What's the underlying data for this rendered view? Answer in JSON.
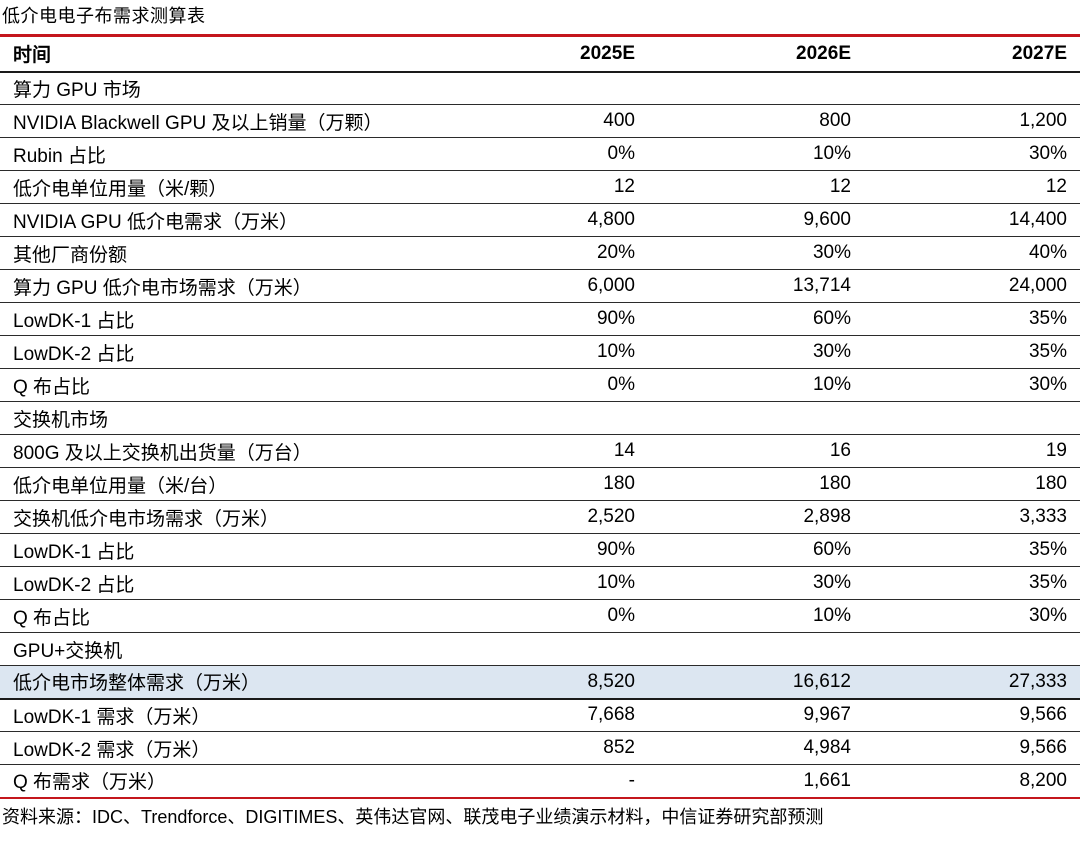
{
  "title": "低介电电子布需求测算表",
  "source_note": "资料来源：IDC、Trendforce、DIGITIMES、英伟达官网、联茂电子业绩演示材料，中信证券研究部预测",
  "colors": {
    "accent_red": "#c4161c",
    "highlight_row_bg": "#dce6f1",
    "row_line": "#2b2b2b",
    "text": "#000000"
  },
  "table": {
    "header": [
      "时间",
      "2025E",
      "2026E",
      "2027E"
    ],
    "rows": [
      {
        "type": "section",
        "label": "算力 GPU 市场",
        "values": [
          "",
          "",
          ""
        ]
      },
      {
        "type": "data",
        "label": "NVIDIA Blackwell GPU 及以上销量（万颗）",
        "values": [
          "400",
          "800",
          "1,200"
        ]
      },
      {
        "type": "data",
        "label": "Rubin 占比",
        "values": [
          "0%",
          "10%",
          "30%"
        ]
      },
      {
        "type": "data",
        "label": "低介电单位用量（米/颗）",
        "values": [
          "12",
          "12",
          "12"
        ]
      },
      {
        "type": "data",
        "label": "NVIDIA GPU 低介电需求（万米）",
        "values": [
          "4,800",
          "9,600",
          "14,400"
        ]
      },
      {
        "type": "data",
        "label": "其他厂商份额",
        "values": [
          "20%",
          "30%",
          "40%"
        ]
      },
      {
        "type": "data",
        "label": "算力 GPU 低介电市场需求（万米）",
        "values": [
          "6,000",
          "13,714",
          "24,000"
        ]
      },
      {
        "type": "data",
        "label": "LowDK-1 占比",
        "values": [
          "90%",
          "60%",
          "35%"
        ]
      },
      {
        "type": "data",
        "label": "LowDK-2 占比",
        "values": [
          "10%",
          "30%",
          "35%"
        ]
      },
      {
        "type": "data",
        "label": "Q 布占比",
        "values": [
          "0%",
          "10%",
          "30%"
        ]
      },
      {
        "type": "section",
        "label": "交换机市场",
        "values": [
          "",
          "",
          ""
        ]
      },
      {
        "type": "data",
        "label": "800G 及以上交换机出货量（万台）",
        "values": [
          "14",
          "16",
          "19"
        ]
      },
      {
        "type": "data",
        "label": "低介电单位用量（米/台）",
        "values": [
          "180",
          "180",
          "180"
        ]
      },
      {
        "type": "data",
        "label": "交换机低介电市场需求（万米）",
        "values": [
          "2,520",
          "2,898",
          "3,333"
        ]
      },
      {
        "type": "data",
        "label": "LowDK-1 占比",
        "values": [
          "90%",
          "60%",
          "35%"
        ]
      },
      {
        "type": "data",
        "label": "LowDK-2 占比",
        "values": [
          "10%",
          "30%",
          "35%"
        ]
      },
      {
        "type": "data",
        "label": "Q 布占比",
        "values": [
          "0%",
          "10%",
          "30%"
        ]
      },
      {
        "type": "section",
        "label": "GPU+交换机",
        "values": [
          "",
          "",
          ""
        ]
      },
      {
        "type": "highlight",
        "label": "低介电市场整体需求（万米）",
        "values": [
          "8,520",
          "16,612",
          "27,333"
        ]
      },
      {
        "type": "data",
        "label": "LowDK-1 需求（万米）",
        "values": [
          "7,668",
          "9,967",
          "9,566"
        ]
      },
      {
        "type": "data",
        "label": "LowDK-2 需求（万米）",
        "values": [
          "852",
          "4,984",
          "9,566"
        ]
      },
      {
        "type": "data",
        "label": "Q 布需求（万米）",
        "values": [
          "-",
          "1,661",
          "8,200"
        ]
      }
    ]
  }
}
